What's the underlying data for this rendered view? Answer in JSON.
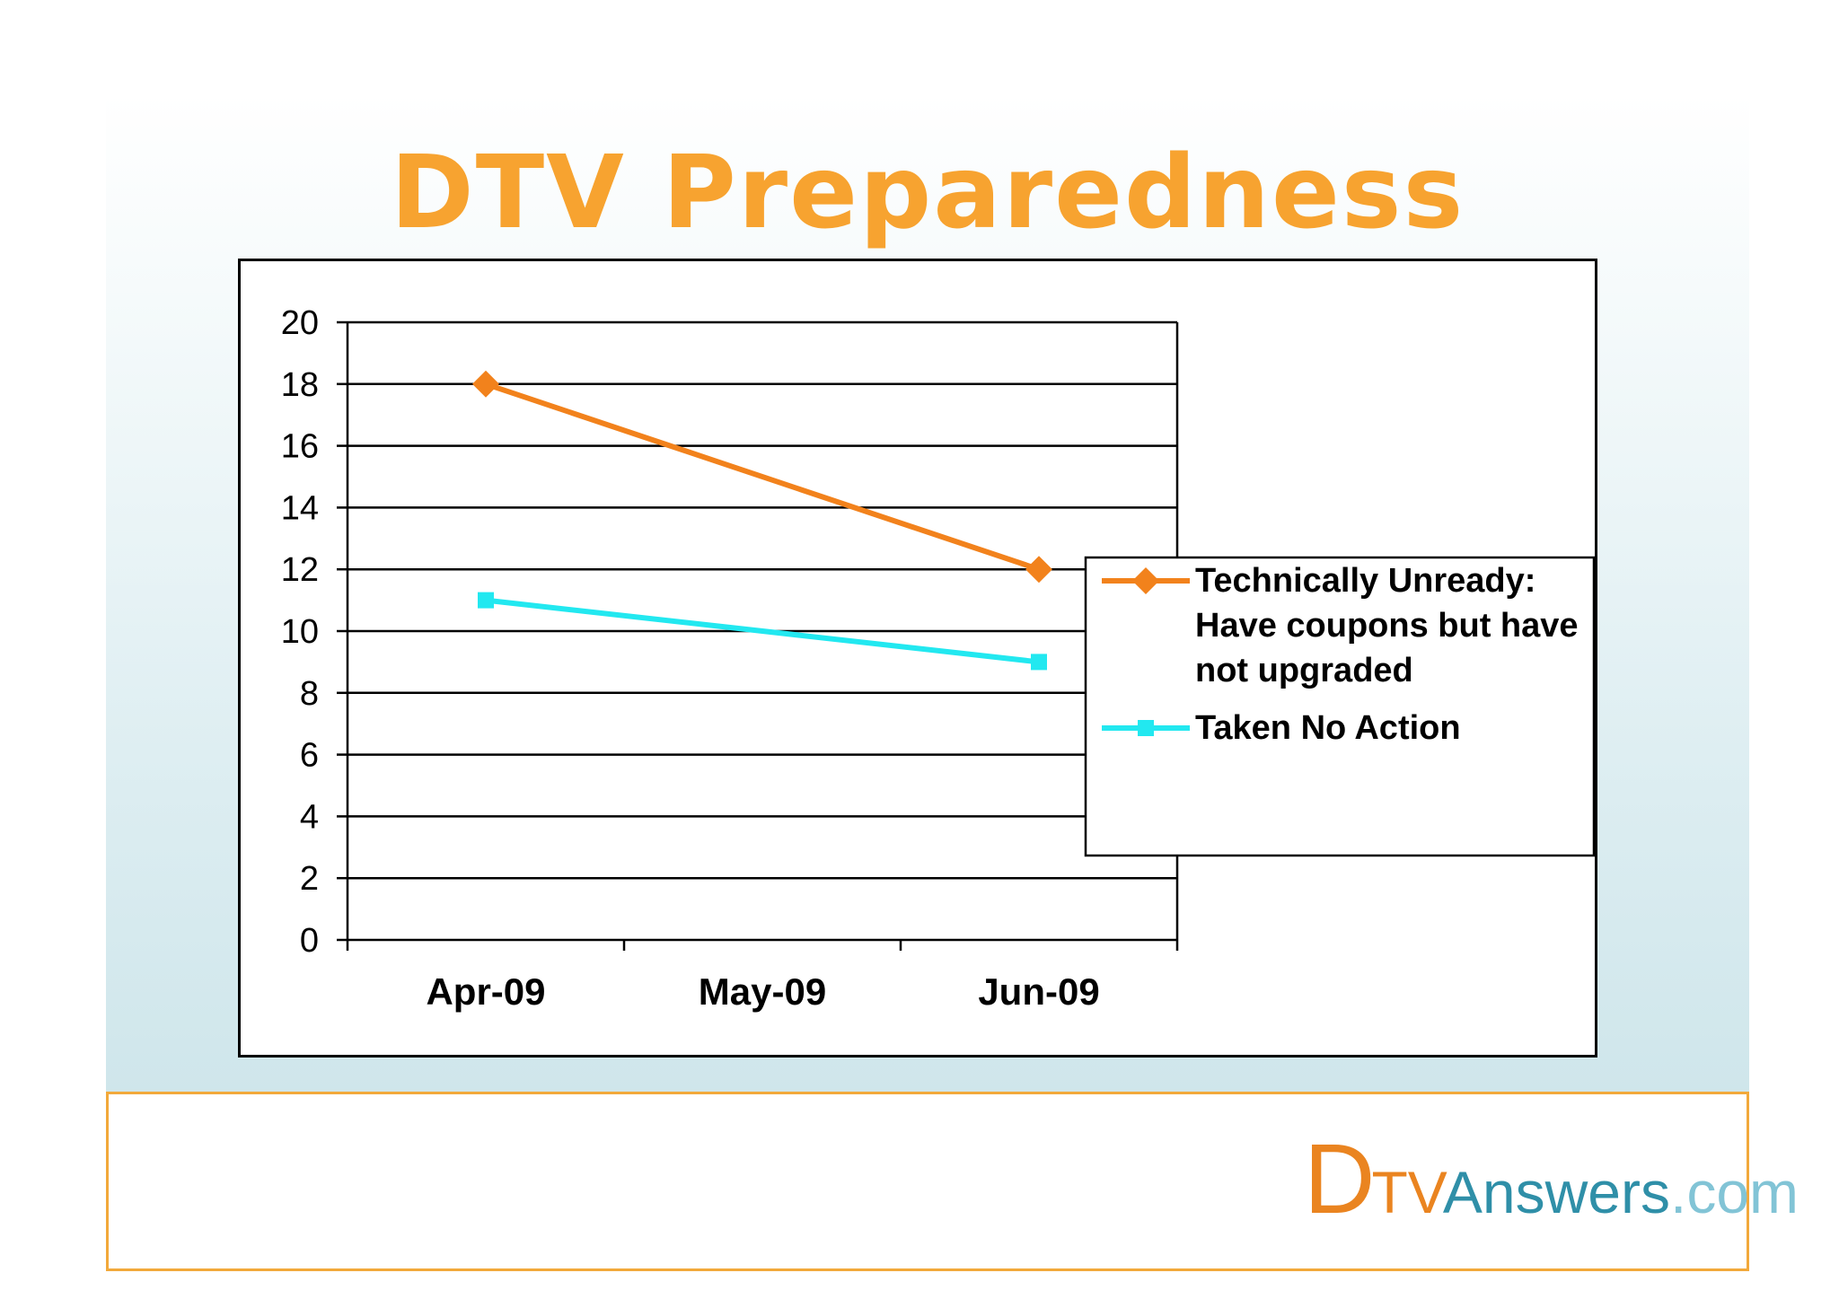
{
  "slide": {
    "title": "DTV Preparedness"
  },
  "chart_data": {
    "type": "line",
    "title": "",
    "xlabel": "",
    "ylabel": "",
    "categories": [
      "Apr-09",
      "May-09",
      "Jun-09"
    ],
    "ylim": [
      0,
      20
    ],
    "yticks": [
      0,
      2,
      4,
      6,
      8,
      10,
      12,
      14,
      16,
      18,
      20
    ],
    "grid": true,
    "legend_position": "right",
    "series": [
      {
        "name": "Technically Unready: Have coupons but have not upgraded",
        "legend_lines": [
          "Technically Unready:",
          "Have coupons but have",
          "not upgraded"
        ],
        "values": [
          18,
          null,
          12
        ],
        "color": "#f2821c",
        "marker": "diamond"
      },
      {
        "name": "Taken No Action",
        "legend_lines": [
          "Taken No Action"
        ],
        "values": [
          11,
          null,
          9
        ],
        "color": "#22e8f0",
        "marker": "square"
      }
    ]
  },
  "logo": {
    "d": "D",
    "tv": "TV",
    "answers": "Answers",
    "com": ".com"
  }
}
